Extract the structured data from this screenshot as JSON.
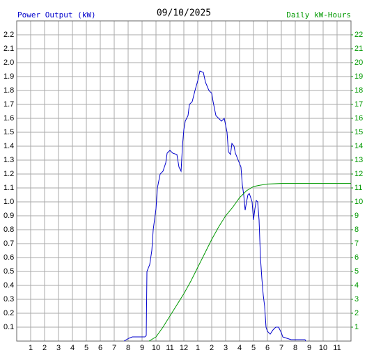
{
  "chart_data": {
    "type": "line",
    "title": "09/10/2025",
    "y_label": "Power Output (kW)",
    "y2_label": "Daily kW-Hours",
    "xlim": [
      0,
      24
    ],
    "xticks": [
      1,
      2,
      3,
      4,
      5,
      6,
      7,
      8,
      9,
      10,
      11,
      12,
      {
        "value": 13,
        "label": "1"
      },
      {
        "value": 14,
        "label": "2"
      },
      {
        "value": 15,
        "label": "3"
      },
      {
        "value": 16,
        "label": "4"
      },
      {
        "value": 17,
        "label": "5"
      },
      {
        "value": 18,
        "label": "6"
      },
      {
        "value": 19,
        "label": "7"
      },
      {
        "value": 20,
        "label": "8"
      },
      {
        "value": 21,
        "label": "9"
      },
      {
        "value": 22,
        "label": "10"
      },
      {
        "value": 23,
        "label": "11"
      }
    ],
    "ylim": [
      0,
      2.3
    ],
    "yticks": [
      0.1,
      0.2,
      0.3,
      0.4,
      0.5,
      0.6,
      0.7,
      0.8,
      0.9,
      {
        "value": 1,
        "label": "1.0"
      },
      1.1,
      1.2,
      1.3,
      1.4,
      1.5,
      1.6,
      1.7,
      1.8,
      1.9,
      {
        "value": 2,
        "label": "2.0"
      },
      2.1,
      2.2
    ],
    "y2lim": [
      0,
      23
    ],
    "y2ticks": [
      1,
      2,
      3,
      4,
      5,
      6,
      7,
      8,
      9,
      10,
      11,
      12,
      13,
      14,
      15,
      16,
      17,
      18,
      19,
      20,
      21,
      22
    ],
    "grid": true,
    "series": [
      {
        "name": "Power Output (kW)",
        "color": "#0000cc",
        "x": [
          7.7,
          8.05,
          8.3,
          9.2,
          9.3,
          9.35,
          9.55,
          9.7,
          9.8,
          10.0,
          10.1,
          10.3,
          10.5,
          10.7,
          10.8,
          11.0,
          11.2,
          11.5,
          11.65,
          11.8,
          11.9,
          12.0,
          12.1,
          12.3,
          12.4,
          12.6,
          12.8,
          13.0,
          13.15,
          13.4,
          13.55,
          13.8,
          14.0,
          14.1,
          14.3,
          14.5,
          14.7,
          14.9,
          15.1,
          15.2,
          15.35,
          15.45,
          15.6,
          15.7,
          15.9,
          16.1,
          16.2,
          16.3,
          16.4,
          16.5,
          16.6,
          16.7,
          16.9,
          17.0,
          17.1,
          17.2,
          17.3,
          17.4,
          17.5,
          17.6,
          17.7,
          17.8,
          17.9,
          18.0,
          18.2,
          18.4,
          18.6,
          18.8,
          19.0,
          19.1,
          19.4,
          19.7,
          20.7,
          20.75
        ],
        "values": [
          0,
          0.02,
          0.03,
          0.03,
          0.04,
          0.5,
          0.55,
          0.65,
          0.8,
          0.95,
          1.1,
          1.2,
          1.22,
          1.28,
          1.35,
          1.37,
          1.35,
          1.34,
          1.25,
          1.22,
          1.4,
          1.52,
          1.58,
          1.62,
          1.7,
          1.72,
          1.8,
          1.87,
          1.94,
          1.93,
          1.86,
          1.8,
          1.78,
          1.72,
          1.62,
          1.6,
          1.58,
          1.6,
          1.5,
          1.36,
          1.34,
          1.42,
          1.4,
          1.35,
          1.3,
          1.25,
          1.12,
          1.05,
          0.94,
          1.0,
          1.05,
          1.06,
          1.0,
          0.87,
          0.95,
          1.01,
          1.0,
          0.87,
          0.6,
          0.45,
          0.33,
          0.25,
          0.1,
          0.07,
          0.05,
          0.08,
          0.1,
          0.1,
          0.06,
          0.03,
          0.02,
          0.01,
          0.01,
          0
        ]
      },
      {
        "name": "Daily kW-Hours",
        "color": "#009900",
        "axis": "y2",
        "x": [
          9.5,
          10,
          10.5,
          11,
          11.5,
          12,
          12.5,
          13,
          13.5,
          14,
          14.5,
          15,
          15.5,
          16,
          16.5,
          17,
          17.5,
          18,
          19,
          24
        ],
        "values": [
          0,
          0.3,
          1,
          1.8,
          2.6,
          3.4,
          4.3,
          5.3,
          6.3,
          7.3,
          8.2,
          9,
          9.6,
          10.3,
          10.8,
          11.1,
          11.2,
          11.28,
          11.32,
          11.32
        ]
      }
    ]
  }
}
